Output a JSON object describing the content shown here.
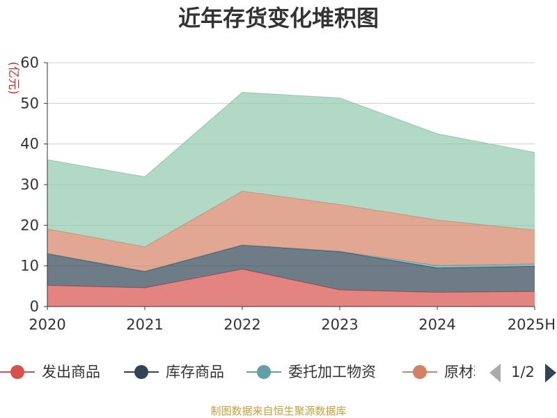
{
  "chart_data": {
    "type": "area",
    "stacked": true,
    "title": "近年存货变化堆积图",
    "ylabel": "(亿元)",
    "ylim": [
      0,
      60
    ],
    "yticks": [
      0,
      10,
      20,
      30,
      40,
      50,
      60
    ],
    "grid": true,
    "categories": [
      "2020",
      "2021",
      "2022",
      "2023",
      "2024",
      "2025H"
    ],
    "series": [
      {
        "name": "发出商品",
        "color": "#d7504b",
        "values": [
          5.2,
          4.6,
          9.2,
          4.1,
          3.5,
          3.7
        ]
      },
      {
        "name": "库存商品",
        "color": "#2f4554",
        "values": [
          7.8,
          4.0,
          5.9,
          9.4,
          6.0,
          6.2
        ]
      },
      {
        "name": "委托加工物资",
        "color": "#61a0a8",
        "values": [
          0.1,
          0.1,
          0.1,
          0.1,
          0.6,
          0.6
        ]
      },
      {
        "name": "原材料",
        "color": "#d48265",
        "values": [
          6.0,
          6.0,
          13.2,
          11.5,
          11.2,
          8.3
        ]
      },
      {
        "name": "",
        "color": "#91c7ae",
        "values": [
          17.0,
          17.2,
          24.3,
          26.2,
          21.2,
          19.1
        ]
      }
    ],
    "legend": {
      "position": "bottom",
      "visible_items": [
        "发出商品",
        "库存商品",
        "委托加工物资",
        "原材料"
      ],
      "page": "1/2"
    }
  },
  "source_text": "制图数据来自恒生聚源数据库"
}
